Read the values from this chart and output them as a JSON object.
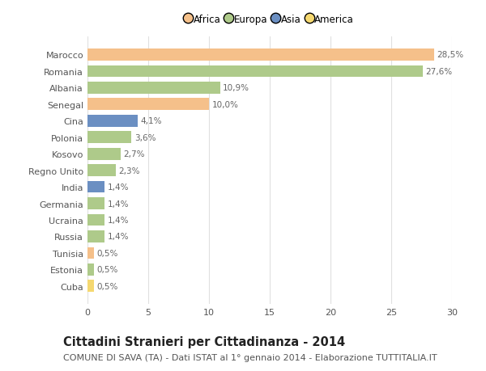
{
  "categories": [
    "Marocco",
    "Romania",
    "Albania",
    "Senegal",
    "Cina",
    "Polonia",
    "Kosovo",
    "Regno Unito",
    "India",
    "Germania",
    "Ucraina",
    "Russia",
    "Tunisia",
    "Estonia",
    "Cuba"
  ],
  "values": [
    28.5,
    27.6,
    10.9,
    10.0,
    4.1,
    3.6,
    2.7,
    2.3,
    1.4,
    1.4,
    1.4,
    1.4,
    0.5,
    0.5,
    0.5
  ],
  "labels": [
    "28,5%",
    "27,6%",
    "10,9%",
    "10,0%",
    "4,1%",
    "3,6%",
    "2,7%",
    "2,3%",
    "1,4%",
    "1,4%",
    "1,4%",
    "1,4%",
    "0,5%",
    "0,5%",
    "0,5%"
  ],
  "colors": [
    "#F5C08A",
    "#AECA8A",
    "#AECA8A",
    "#F5C08A",
    "#6B8FC2",
    "#AECA8A",
    "#AECA8A",
    "#AECA8A",
    "#6B8FC2",
    "#AECA8A",
    "#AECA8A",
    "#AECA8A",
    "#F5C08A",
    "#AECA8A",
    "#F5D870"
  ],
  "legend_labels": [
    "Africa",
    "Europa",
    "Asia",
    "America"
  ],
  "legend_colors": [
    "#F5C08A",
    "#AECA8A",
    "#6B8FC2",
    "#F5D870"
  ],
  "title": "Cittadini Stranieri per Cittadinanza - 2014",
  "subtitle": "COMUNE DI SAVA (TA) - Dati ISTAT al 1° gennaio 2014 - Elaborazione TUTTITALIA.IT",
  "xlim": [
    0,
    30
  ],
  "xticks": [
    0,
    5,
    10,
    15,
    20,
    25,
    30
  ],
  "bg_color": "#FFFFFF",
  "grid_color": "#E0E0E0",
  "bar_height": 0.72,
  "title_fontsize": 10.5,
  "subtitle_fontsize": 8,
  "tick_fontsize": 8,
  "label_fontsize": 7.5,
  "legend_fontsize": 8.5
}
